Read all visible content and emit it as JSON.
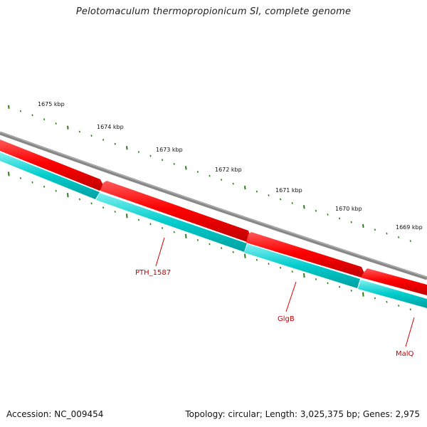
{
  "title": "Pelotomaculum thermopropionicum SI, complete genome",
  "footer": {
    "accession": "Accession: NC_009454",
    "summary": "Topology: circular; Length: 3,025,375 bp; Genes: 2,975"
  },
  "colors": {
    "backbone": "#808080",
    "forward_cds": "#ff0000",
    "reverse_cds": "#00cccc",
    "tick": "#2e7d1a",
    "gene_label": "#c80000"
  },
  "ruler": {
    "labels": [
      "1675 kbp",
      "1674 kbp",
      "1673 kbp",
      "1672 kbp",
      "1671 kbp",
      "1670 kbp",
      "1669 kbp"
    ]
  },
  "genes": [
    {
      "name": "PTH_1587"
    },
    {
      "name": "GlgB"
    },
    {
      "name": "MalQ"
    }
  ]
}
